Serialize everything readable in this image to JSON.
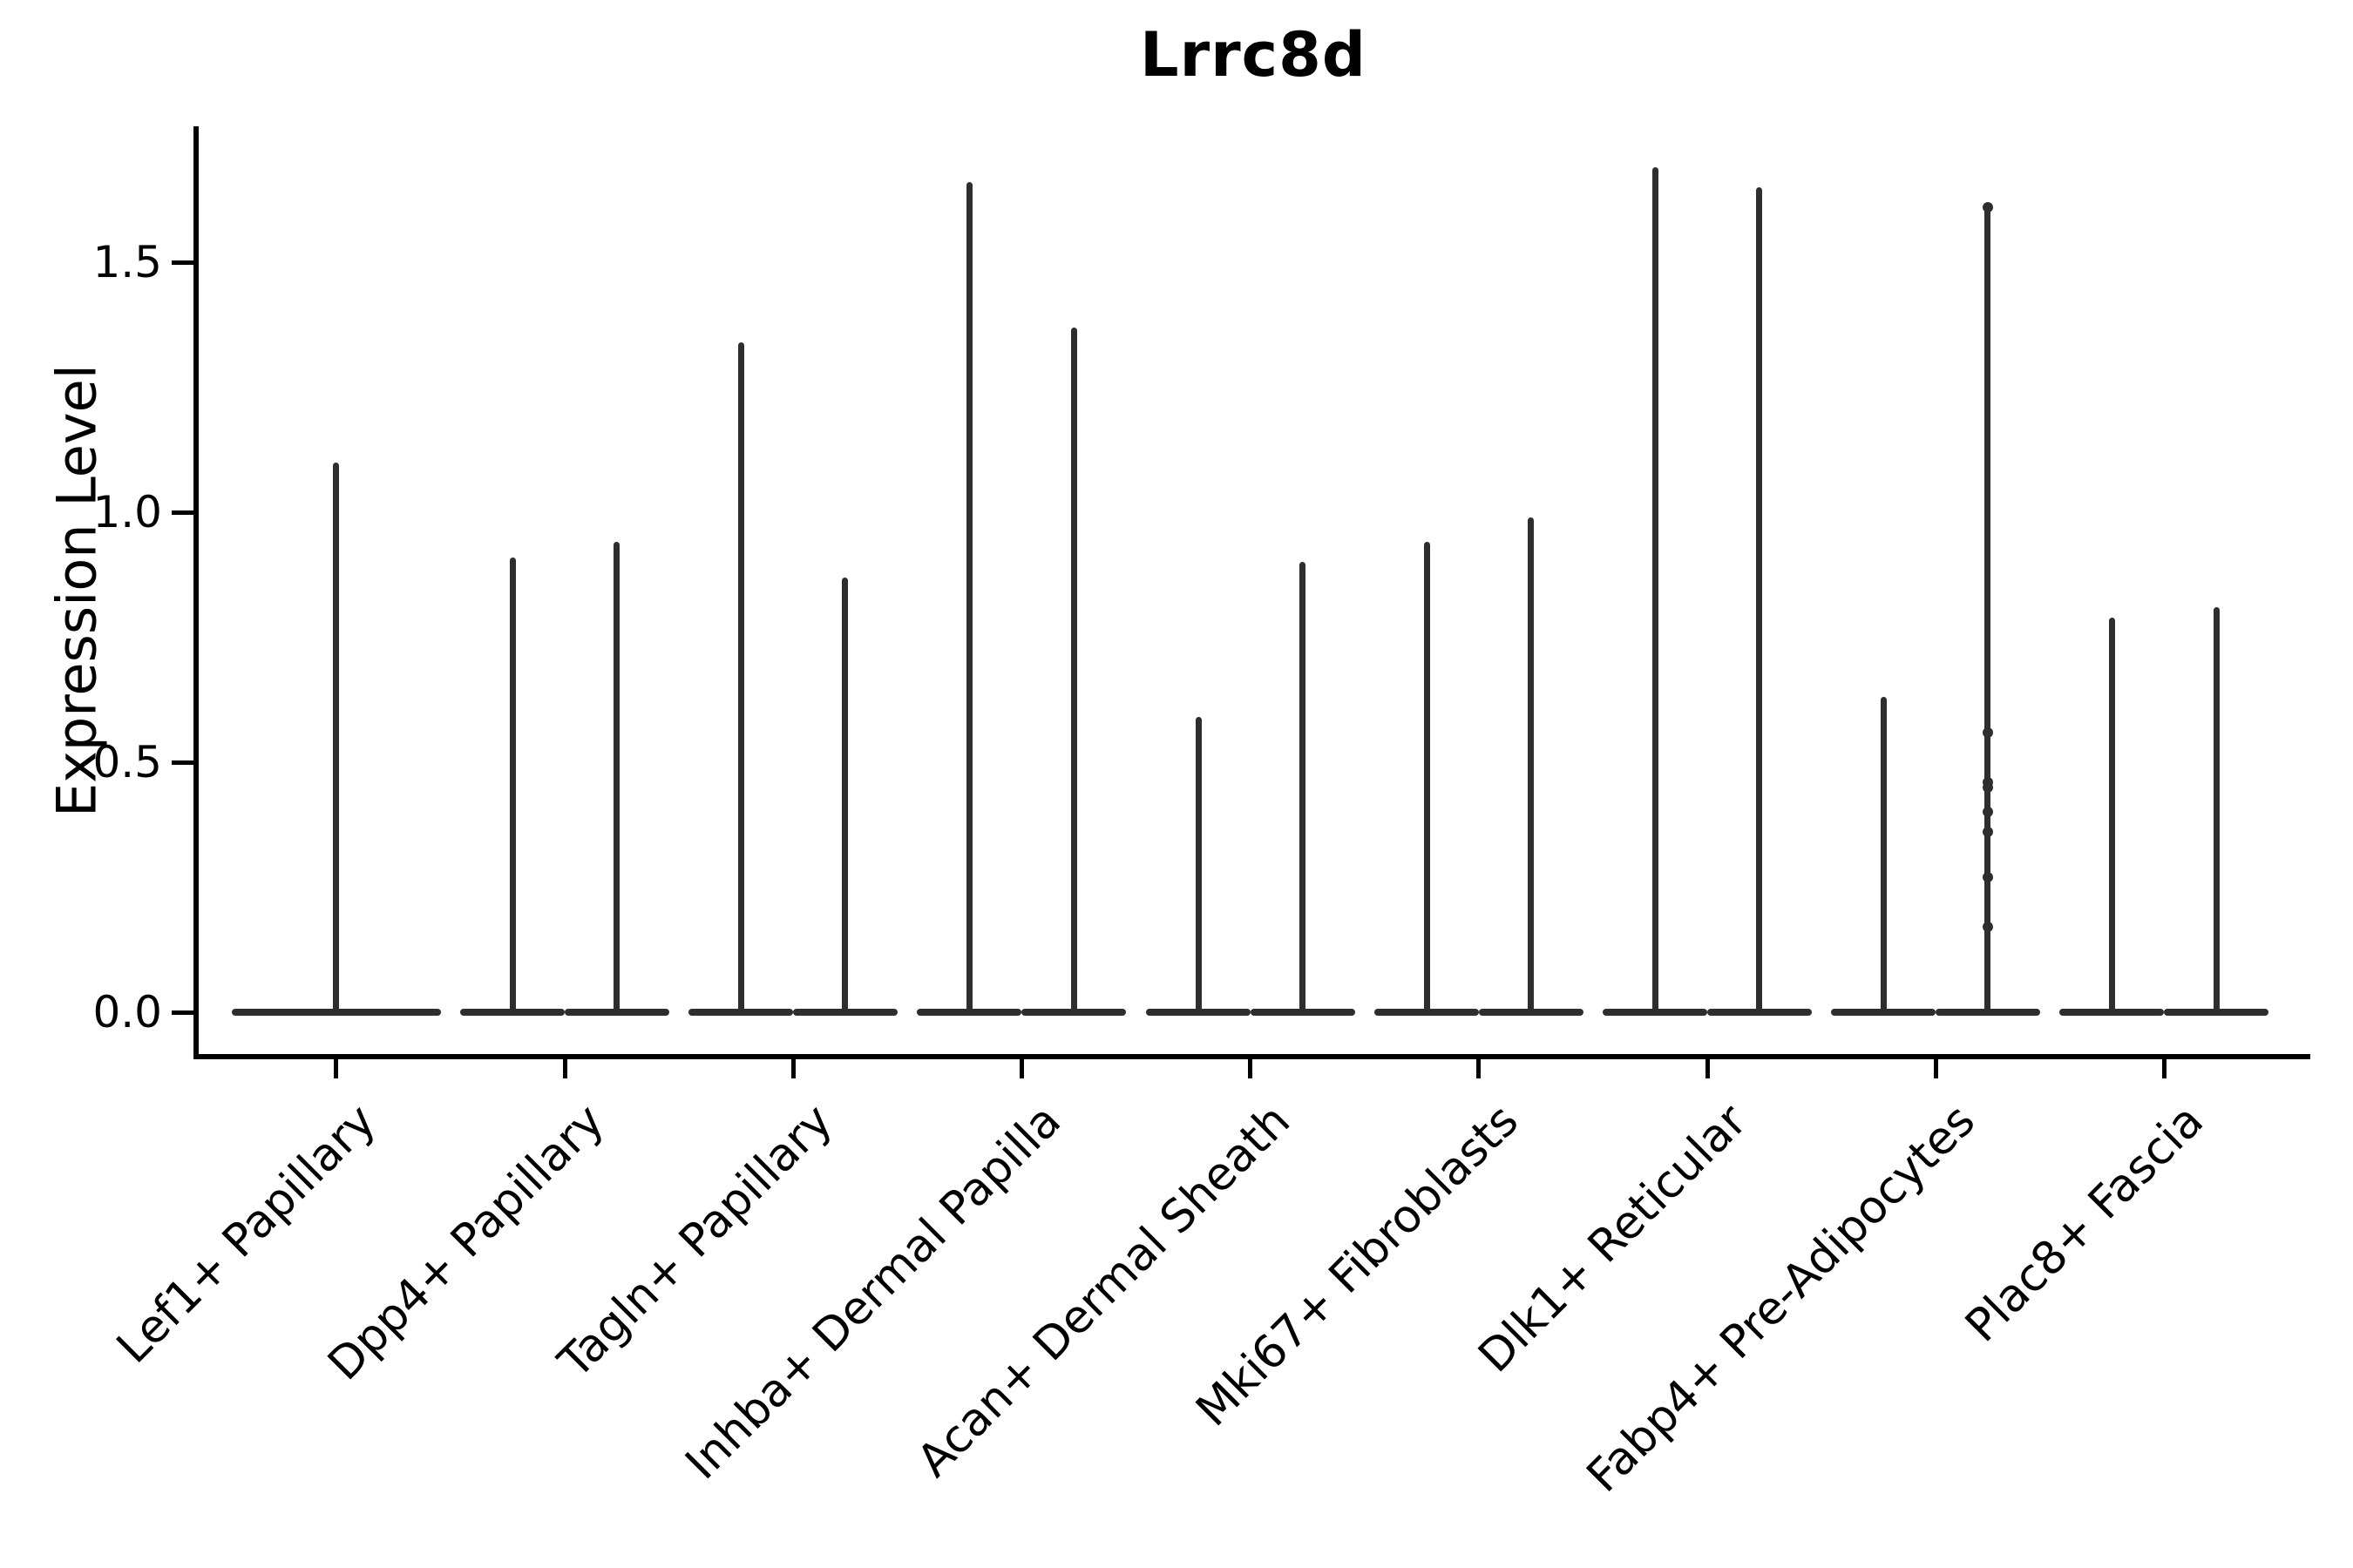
{
  "figure": {
    "title": "Lrrc8d",
    "ylabel": "Expression Level"
  },
  "chart_data": {
    "type": "violin",
    "title": "Lrrc8d",
    "xlabel": "",
    "ylabel": "Expression Level",
    "ylim": [
      0,
      1.77
    ],
    "grid": false,
    "legend": "none",
    "yticks": [
      0.0,
      0.5,
      1.0,
      1.5
    ],
    "ytick_labels": [
      "0.0",
      "0.5",
      "1.0",
      "1.5"
    ],
    "categories": [
      "Lef1+ Papillary",
      "Dpp4+ Papillary",
      "Tagln+ Papillary",
      "Inhba+ Dermal Papilla",
      "Acan+ Dermal Sheath",
      "Mki67+ Fibroblasts",
      "Dlk1+ Reticular",
      "Fabp4+ Pre-Adipocytes",
      "Plac8+ Fascia"
    ],
    "violin_description": "Each violin is a flat base at expression 0 with a thin spike up to the max expression value; most categories contain two side-by-side violins (left/right split), Lef1+ Papillary has a single full-width violin.",
    "violins": [
      {
        "category": "Lef1+ Papillary",
        "slot": "full",
        "max": 1.1
      },
      {
        "category": "Dpp4+ Papillary",
        "slot": "left",
        "max": 0.91
      },
      {
        "category": "Dpp4+ Papillary",
        "slot": "right",
        "max": 0.94
      },
      {
        "category": "Tagln+ Papillary",
        "slot": "left",
        "max": 1.34
      },
      {
        "category": "Tagln+ Papillary",
        "slot": "right",
        "max": 0.87
      },
      {
        "category": "Inhba+ Dermal Papilla",
        "slot": "left",
        "max": 1.66
      },
      {
        "category": "Inhba+ Dermal Papilla",
        "slot": "right",
        "max": 1.37
      },
      {
        "category": "Acan+ Dermal Sheath",
        "slot": "left",
        "max": 0.59
      },
      {
        "category": "Acan+ Dermal Sheath",
        "slot": "right",
        "max": 0.9
      },
      {
        "category": "Mki67+ Fibroblasts",
        "slot": "left",
        "max": 0.94
      },
      {
        "category": "Mki67+ Fibroblasts",
        "slot": "right",
        "max": 0.99
      },
      {
        "category": "Dlk1+ Reticular",
        "slot": "left",
        "max": 1.69
      },
      {
        "category": "Dlk1+ Reticular",
        "slot": "right",
        "max": 1.65
      },
      {
        "category": "Fabp4+ Pre-Adipocytes",
        "slot": "left",
        "max": 0.63
      },
      {
        "category": "Fabp4+ Pre-Adipocytes",
        "slot": "right",
        "max": 1.61,
        "points": [
          1.61,
          0.56,
          0.46,
          0.45,
          0.4,
          0.36,
          0.27,
          0.17
        ]
      },
      {
        "category": "Plac8+ Fascia",
        "slot": "left",
        "max": 0.79
      },
      {
        "category": "Plac8+ Fascia",
        "slot": "right",
        "max": 0.81
      }
    ],
    "colors": {
      "violin": "#2e2e2e",
      "axis": "#000000",
      "text": "#000000",
      "background": "#ffffff"
    }
  }
}
